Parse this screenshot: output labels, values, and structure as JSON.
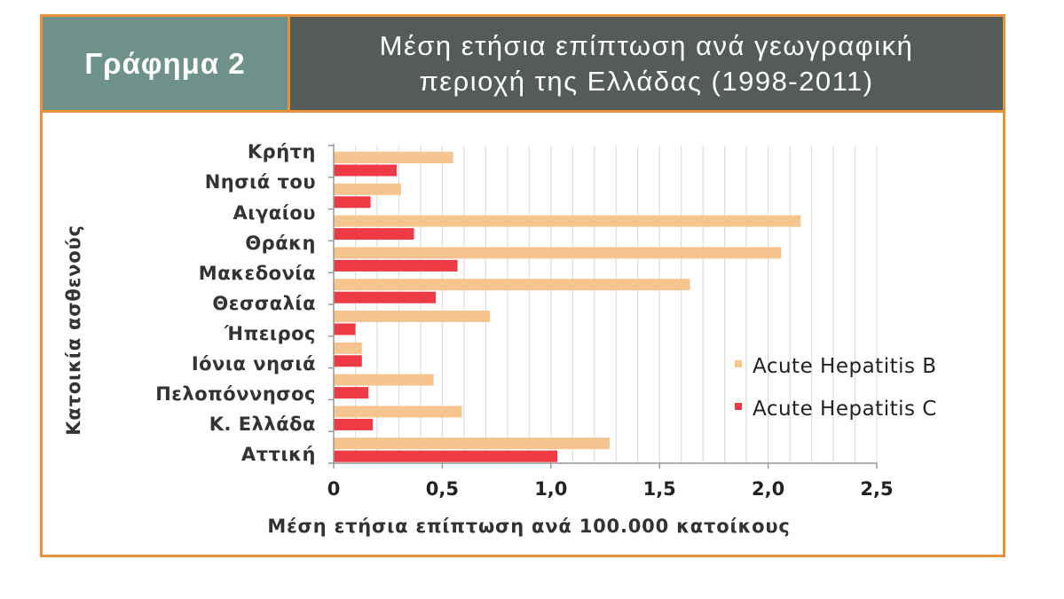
{
  "header": {
    "badge": "Γράφημα 2",
    "title_line1": "Μέση ετήσια επίπτωση ανά γεωγραφική",
    "title_line2": "περιοχή της Ελλάδας (1998-2011)"
  },
  "chart_data": {
    "type": "bar",
    "orientation": "horizontal",
    "xlabel": "Μέση ετήσια επίπτωση ανά 100.000 κατοίκους",
    "ylabel": "Κατοικία ασθενούς",
    "xlim": [
      0,
      2.5
    ],
    "xticks": [
      "0",
      "0,5",
      "1,0",
      "1,5",
      "2,0",
      "2,5"
    ],
    "grid": "vertical",
    "legend_position": "right",
    "category_labels": [
      "Κρήτη",
      "Νησιά του",
      "Αιγαίου",
      "Θράκη",
      "Μακεδονία",
      "Θεσσαλία",
      "Ήπειρος",
      "Ιόνια νησιά",
      "Πελοπόννησος",
      "Κ. Ελλάδα",
      "Αττική"
    ],
    "categories": [
      "Κρήτη",
      "Νησιά του Αιγαίου",
      "Θράκη",
      "Μακεδονία",
      "Θεσσαλία",
      "Ήπειρος",
      "Ιόνια νησιά",
      "Πελοπόννησος",
      "Κ. Ελλάδα",
      "Αττική"
    ],
    "series": [
      {
        "name": "Acute Hepatitis B",
        "color": "#f5c48f",
        "values": [
          0.55,
          0.31,
          2.15,
          2.06,
          1.64,
          0.72,
          0.13,
          0.46,
          0.59,
          1.27
        ]
      },
      {
        "name": "Acute Hepatitis C",
        "color": "#ee3a45",
        "values": [
          0.29,
          0.17,
          0.37,
          0.57,
          0.47,
          0.1,
          0.13,
          0.16,
          0.18,
          1.03
        ]
      }
    ]
  }
}
